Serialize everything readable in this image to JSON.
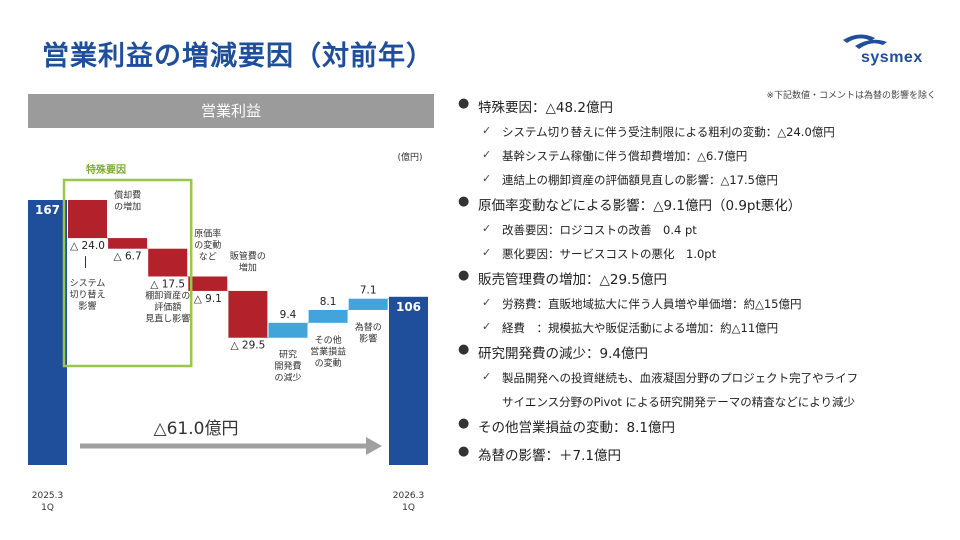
{
  "slide": {
    "title": "営業利益の増減要因（対前年）",
    "logo_text": "sysmex",
    "footnote": "※下記数値・コメントは為替の影響を除く"
  },
  "colors": {
    "title": "#1f4e9b",
    "endpoint_bar": "#1f4e9b",
    "decrease_bar": "#b3212b",
    "increase_bar": "#41a5dc",
    "special_box": "#9ac64a",
    "header_bg": "#9b9b9b",
    "arrow": "#a0a0a0"
  },
  "chart_data": {
    "type": "bar",
    "subtype": "waterfall",
    "title": "営業利益",
    "unit": "(億円)",
    "start": {
      "label": "2025.3\n1Q",
      "value": 167,
      "value_label": "167"
    },
    "end": {
      "label": "2026.3\n1Q",
      "value": 106,
      "value_label": "106"
    },
    "steps": [
      {
        "label": "システム\n切り替え\n影響",
        "delta": -24.0,
        "value_label": "△ 24.0"
      },
      {
        "label": "償却費\nの増加",
        "delta": -6.7,
        "value_label": "△ 6.7"
      },
      {
        "label": "棚卸資産の\n評価額\n見直し影響",
        "delta": -17.5,
        "value_label": "△ 17.5"
      },
      {
        "label": "原価率\nの変動\nなど",
        "delta": -9.1,
        "value_label": "△ 9.1"
      },
      {
        "label": "販管費の\n増加",
        "delta": -29.5,
        "value_label": "△ 29.5"
      },
      {
        "label": "研究\n開発費\nの減少",
        "delta": 9.4,
        "value_label": "9.4"
      },
      {
        "label": "その他\n営業損益\nの変動",
        "delta": 8.1,
        "value_label": "8.1"
      },
      {
        "label": "為替の\n影響",
        "delta": 7.1,
        "value_label": "7.1"
      }
    ],
    "special_group": {
      "label": "特殊要因",
      "step_count": 3
    },
    "total_change_label": "△61.0億円"
  },
  "notes": [
    {
      "text": "特殊要因：△48.2億円",
      "subs": [
        "システム切り替えに伴う受注制限による粗利の変動：△24.0億円",
        "基幹システム稼働に伴う償却費増加：△6.7億円",
        "連結上の棚卸資産の評価額見直しの影響：△17.5億円"
      ]
    },
    {
      "text": "原価率変動などによる影響：△9.1億円（0.9pt悪化）",
      "subs": [
        "改善要因：ロジコストの改善　0.4 pt",
        "悪化要因：サービスコストの悪化　1.0pt"
      ]
    },
    {
      "text": "販売管理費の増加：△29.5億円",
      "subs": [
        "労務費：直販地域拡大に伴う人員増や単価増：約△15億円",
        "経費　：規模拡大や販促活動による増加：約△11億円"
      ]
    },
    {
      "text": "研究開発費の減少：9.4億円",
      "subs": [
        "製品開発への投資継続も、血液凝固分野のプロジェクト完了やライフ",
        "サイエンス分野のPivot による研究開発テーマの精査などにより減少"
      ]
    },
    {
      "text": "その他営業損益の変動：8.1億円",
      "subs": []
    },
    {
      "text": "為替の影響：＋7.1億円",
      "subs": []
    }
  ]
}
